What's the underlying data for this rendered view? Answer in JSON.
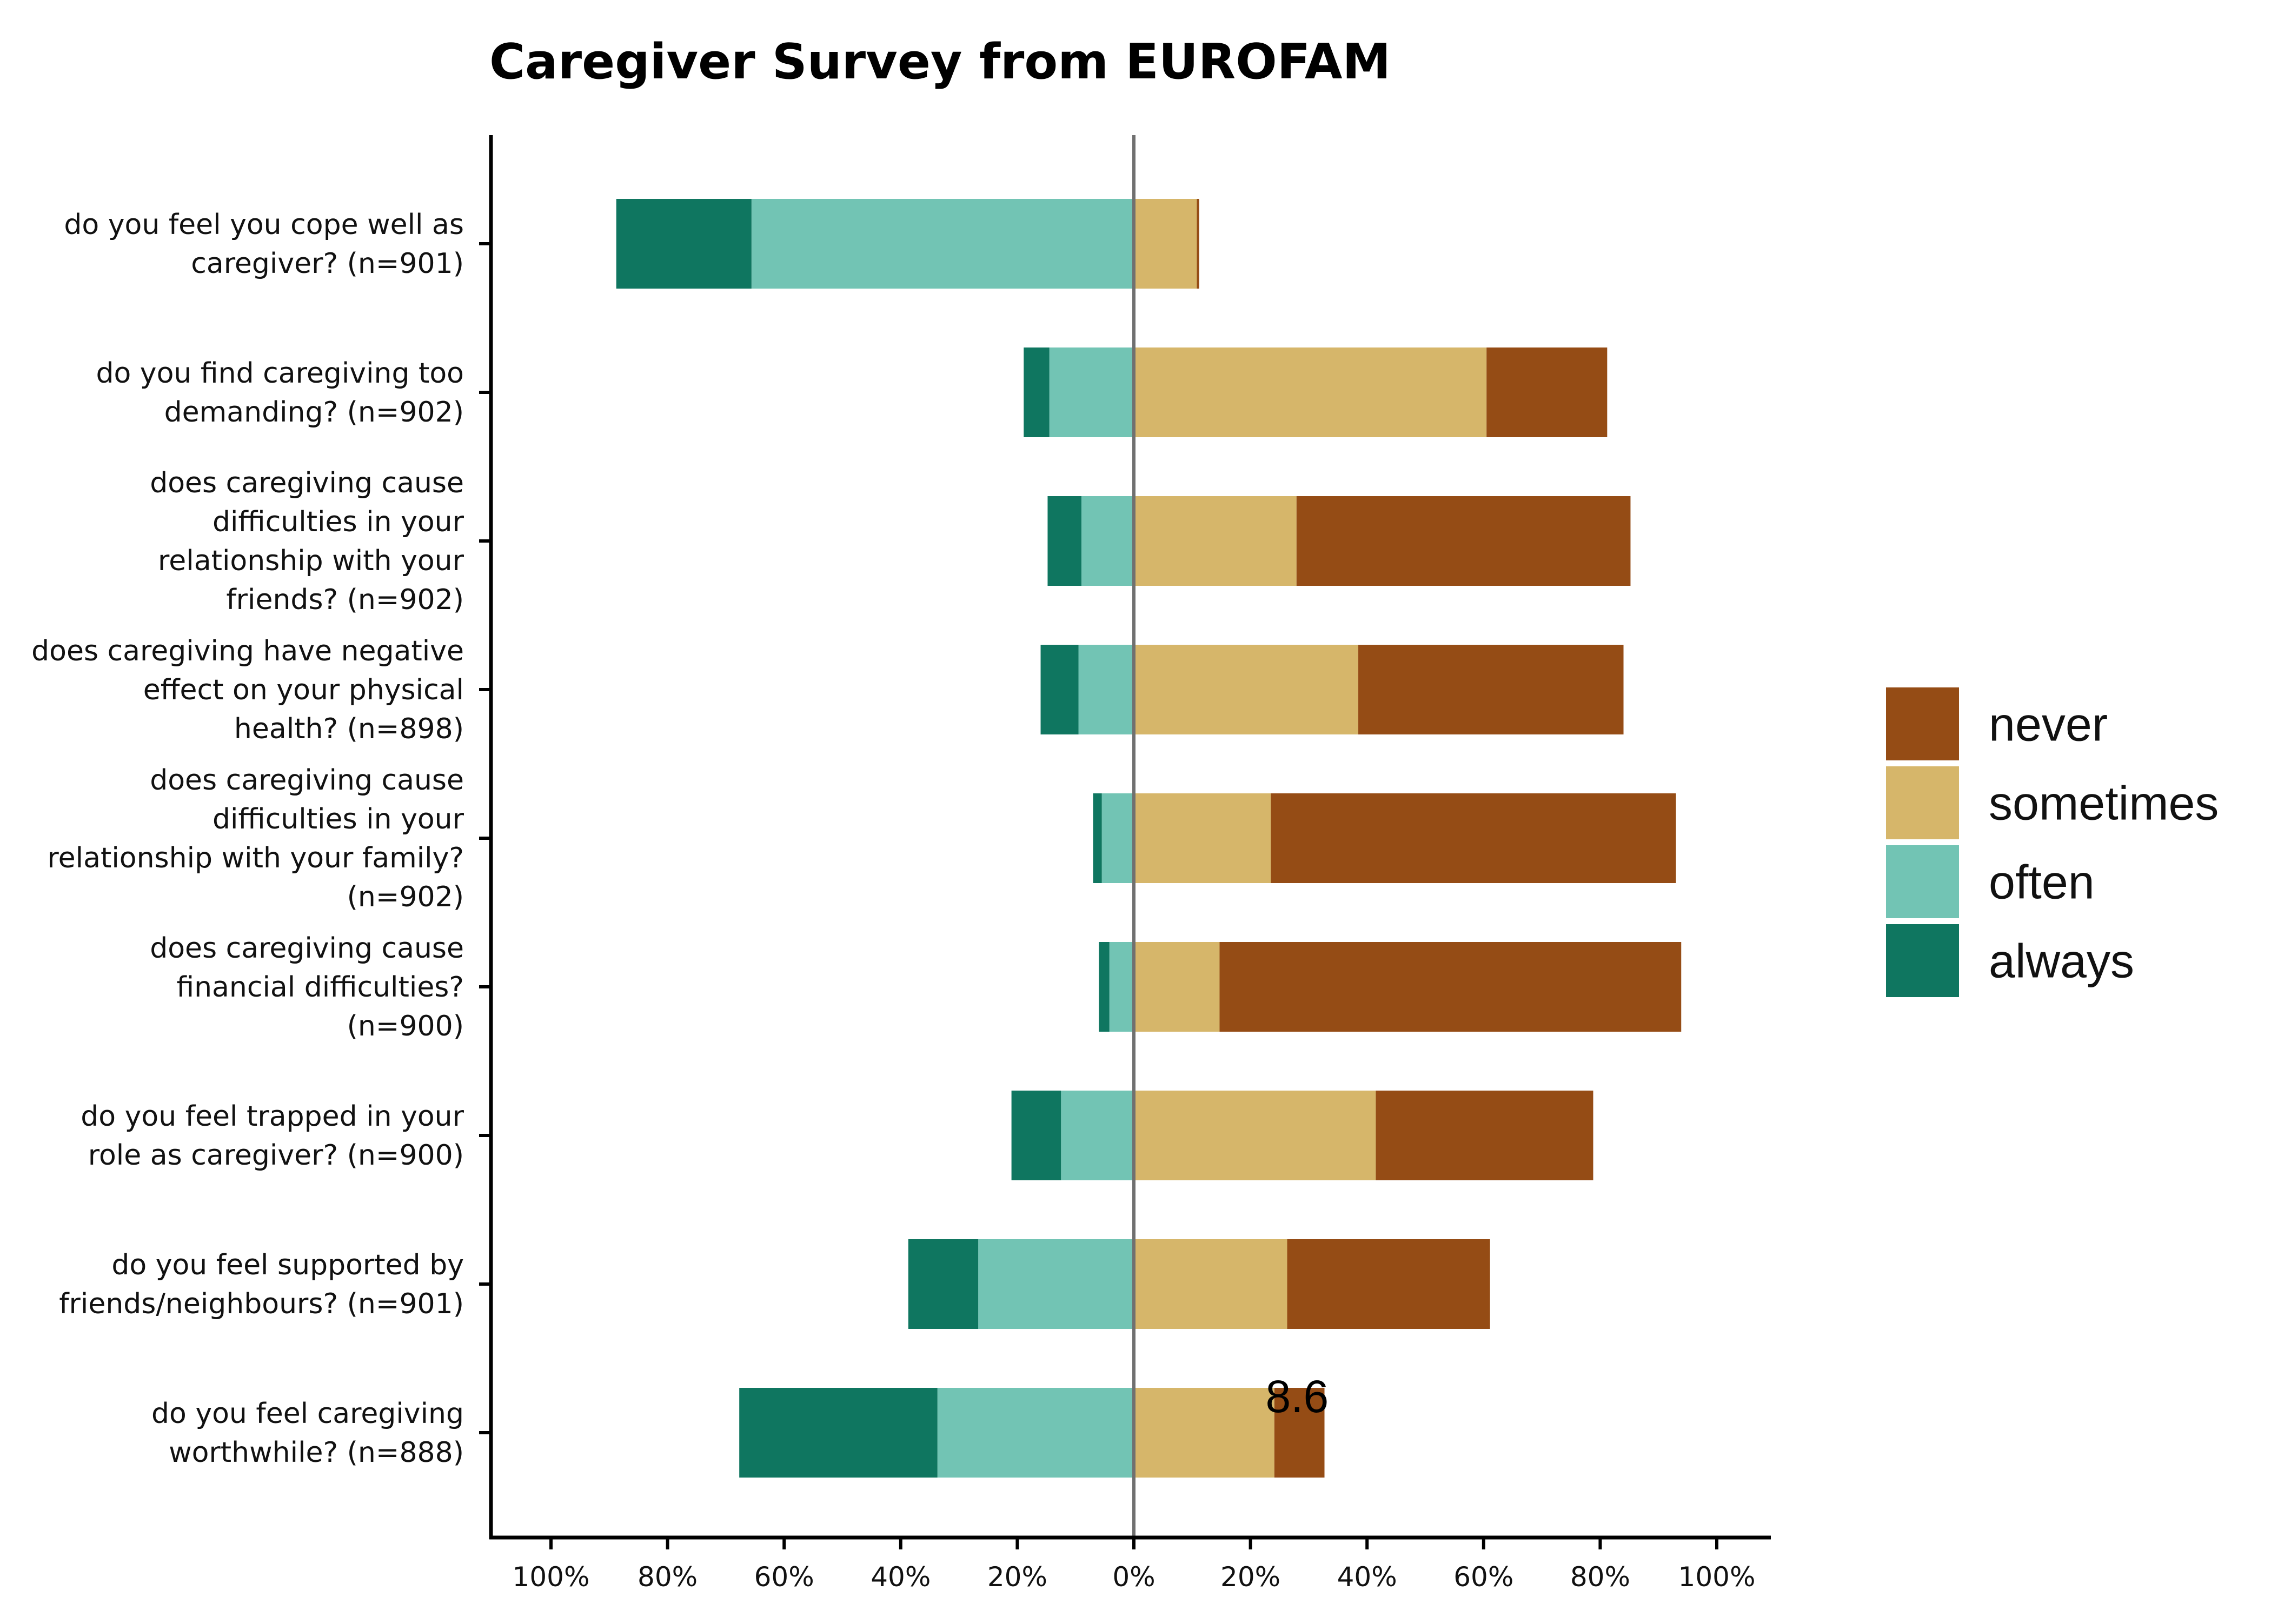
{
  "chart_data": {
    "type": "bar",
    "orientation": "horizontal",
    "stacked": "diverging",
    "title": "Caregiver Survey from EUROFAM",
    "xlabel": "",
    "ylabel": "",
    "xlim": [
      -100,
      100
    ],
    "x_ticks": [
      -100,
      -80,
      -60,
      -40,
      -20,
      0,
      20,
      40,
      60,
      80,
      100
    ],
    "x_tick_labels": [
      "100%",
      "80%",
      "60%",
      "40%",
      "20%",
      "0%",
      "20%",
      "40%",
      "60%",
      "80%",
      "100%"
    ],
    "grid": false,
    "legend_position": "right",
    "legend": [
      "never",
      "sometimes",
      "often",
      "always"
    ],
    "colors": {
      "never": "#954C15",
      "sometimes": "#D6B66A",
      "often": "#72C4B4",
      "always": "#0F7660",
      "center_line": "#707070"
    },
    "categories": [
      "do you feel you cope well as caregiver? (n=901)",
      "do you find caregiving too demanding? (n=902)",
      "does caregiving cause difficulties in your relationship with your friends? (n=902)",
      "does caregiving have negative effect on your physical health? (n=898)",
      "does caregiving cause difficulties in your relationship with your family? (n=902)",
      "does caregiving cause financial difficulties? (n=900)",
      "do you feel trapped in your role as caregiver? (n=900)",
      "do you feel supported by friends/neighbours? (n=901)",
      "do you feel caregiving worthwhile? (n=888)"
    ],
    "category_label_lines": [
      [
        "do you feel you cope well as",
        "caregiver? (n=901)"
      ],
      [
        "do you find caregiving too",
        "demanding? (n=902)"
      ],
      [
        "does caregiving cause",
        "difficulties in your",
        "relationship with your",
        "friends? (n=902)"
      ],
      [
        "does caregiving have negative",
        "effect on your physical",
        "health? (n=898)"
      ],
      [
        "does caregiving cause",
        "difficulties in your",
        "relationship with your family?",
        "(n=902)"
      ],
      [
        "does caregiving cause",
        "financial difficulties?",
        "(n=900)"
      ],
      [
        "do you feel trapped in your",
        "role as caregiver? (n=900)"
      ],
      [
        "do you feel supported by",
        "friends/neighbours? (n=901)"
      ],
      [
        "do you feel caregiving",
        "worthwhile? (n=888)"
      ]
    ],
    "series": [
      {
        "name": "always",
        "side": "negative",
        "values": [
          23.2,
          4.4,
          5.8,
          6.5,
          1.5,
          1.8,
          8.5,
          12.0,
          34.0
        ]
      },
      {
        "name": "often",
        "side": "negative",
        "values": [
          65.6,
          14.5,
          9.0,
          9.5,
          5.5,
          4.2,
          12.5,
          26.7,
          33.7
        ]
      },
      {
        "name": "sometimes",
        "side": "positive",
        "values": [
          10.8,
          60.5,
          27.9,
          38.5,
          23.5,
          14.7,
          41.5,
          26.3,
          24.1
        ]
      },
      {
        "name": "never",
        "side": "positive",
        "values": [
          0.4,
          20.7,
          57.3,
          45.5,
          69.5,
          79.2,
          37.3,
          34.8,
          8.6
        ]
      }
    ],
    "annotations": [
      {
        "text": "8.6",
        "category_index": 8,
        "x": 28
      }
    ]
  }
}
